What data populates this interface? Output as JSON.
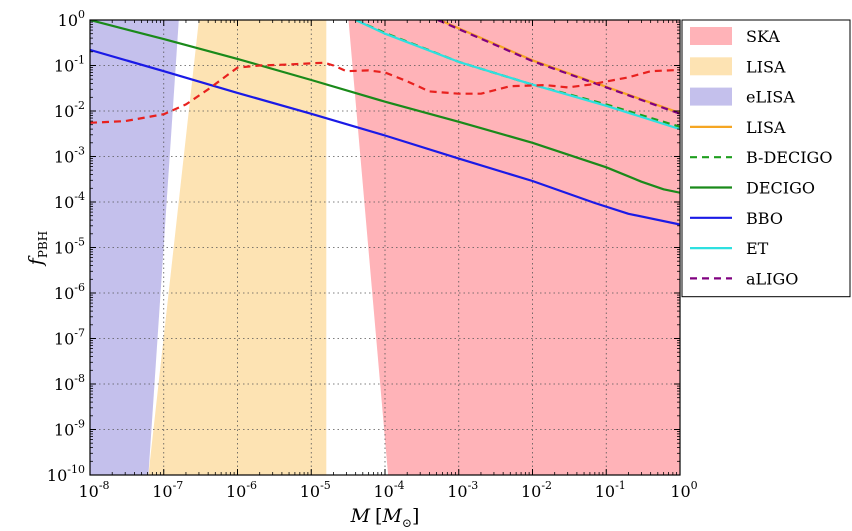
{
  "chart_data": {
    "type": "line",
    "title": "",
    "xlabel": {
      "main": "M",
      "open": "[",
      "var": "M",
      "sub": "⊙",
      "close": "]"
    },
    "ylabel": {
      "main": "f",
      "sub": "PBH"
    },
    "x_scale": "log",
    "y_scale": "log",
    "xlim": [
      1e-08,
      1
    ],
    "ylim": [
      1e-10,
      1
    ],
    "x_ticks": [
      {
        "base": "10",
        "exp": "-8",
        "value": 1e-08
      },
      {
        "base": "10",
        "exp": "-7",
        "value": 1e-07
      },
      {
        "base": "10",
        "exp": "-6",
        "value": 1e-06
      },
      {
        "base": "10",
        "exp": "-5",
        "value": 1e-05
      },
      {
        "base": "10",
        "exp": "-4",
        "value": 0.0001
      },
      {
        "base": "10",
        "exp": "-3",
        "value": 0.001
      },
      {
        "base": "10",
        "exp": "-2",
        "value": 0.01
      },
      {
        "base": "10",
        "exp": "-1",
        "value": 0.1
      },
      {
        "base": "10",
        "exp": "0",
        "value": 1
      }
    ],
    "y_ticks": [
      {
        "base": "10",
        "exp": "0",
        "value": 1
      },
      {
        "base": "10",
        "exp": "-1",
        "value": 0.1
      },
      {
        "base": "10",
        "exp": "-2",
        "value": 0.01
      },
      {
        "base": "10",
        "exp": "-3",
        "value": 0.001
      },
      {
        "base": "10",
        "exp": "-4",
        "value": 0.0001
      },
      {
        "base": "10",
        "exp": "-5",
        "value": 1e-05
      },
      {
        "base": "10",
        "exp": "-6",
        "value": 1e-06
      },
      {
        "base": "10",
        "exp": "-7",
        "value": 1e-07
      },
      {
        "base": "10",
        "exp": "-8",
        "value": 1e-08
      },
      {
        "base": "10",
        "exp": "-9",
        "value": 1e-09
      },
      {
        "base": "10",
        "exp": "-10",
        "value": 1e-10
      }
    ],
    "grid": true,
    "legend_position": "right",
    "regions": [
      {
        "name": "SKA",
        "color": "#ffb3b8",
        "polygon": [
          [
            3.2e-05,
            1
          ],
          [
            1,
            1
          ],
          [
            1,
            1e-10
          ],
          [
            0.00011,
            1e-10
          ]
        ]
      },
      {
        "name": "LISA",
        "color": "#fde3b3",
        "polygon": [
          [
            3e-07,
            1
          ],
          [
            1.6e-05,
            1
          ],
          [
            1.6e-05,
            1e-10
          ],
          [
            6.2e-08,
            1e-10
          ]
        ]
      },
      {
        "name": "eLISA",
        "color": "#c4c0ec",
        "polygon": [
          [
            1e-08,
            1
          ],
          [
            1.6e-07,
            1
          ],
          [
            6.2e-08,
            1e-10
          ],
          [
            1e-08,
            1e-10
          ]
        ]
      }
    ],
    "series": [
      {
        "name": "LISA",
        "color": "#f5a623",
        "dash": "solid",
        "points": [
          [
            0.00055,
            1
          ],
          [
            0.01,
            0.13
          ],
          [
            0.1,
            0.034
          ],
          [
            1,
            0.009
          ]
        ]
      },
      {
        "name": "B-DECIGO",
        "color": "#1e9e1e",
        "dash": "dashed",
        "points": [
          [
            4e-05,
            1
          ],
          [
            0.0001,
            0.52
          ],
          [
            0.001,
            0.12
          ],
          [
            0.01,
            0.038
          ],
          [
            0.1,
            0.014
          ],
          [
            1,
            0.0045
          ]
        ]
      },
      {
        "name": "DECIGO",
        "color": "#1a8a1a",
        "dash": "solid",
        "points": [
          [
            1e-08,
            1
          ],
          [
            1e-07,
            0.38
          ],
          [
            1e-06,
            0.14
          ],
          [
            1e-05,
            0.048
          ],
          [
            0.0001,
            0.016
          ],
          [
            0.001,
            0.0058
          ],
          [
            0.01,
            0.002
          ],
          [
            0.1,
            0.00058
          ],
          [
            0.3,
            0.00028
          ],
          [
            0.6,
            0.00019
          ],
          [
            1,
            0.00016
          ]
        ]
      },
      {
        "name": "BBO",
        "color": "#1a1ae6",
        "dash": "solid",
        "points": [
          [
            1e-08,
            0.22
          ],
          [
            1e-07,
            0.075
          ],
          [
            1e-06,
            0.025
          ],
          [
            1e-05,
            0.0087
          ],
          [
            0.0001,
            0.0029
          ],
          [
            0.001,
            0.0009
          ],
          [
            0.01,
            0.00029
          ],
          [
            0.07,
            9.5e-05
          ],
          [
            0.2,
            5.5e-05
          ],
          [
            1,
            3.2e-05
          ]
        ]
      },
      {
        "name": "ET",
        "color": "#2ee0e0",
        "dash": "solid",
        "points": [
          [
            4e-05,
            1
          ],
          [
            0.0001,
            0.5
          ],
          [
            0.001,
            0.12
          ],
          [
            0.01,
            0.038
          ],
          [
            0.1,
            0.013
          ],
          [
            1,
            0.004
          ]
        ]
      },
      {
        "name": "aLIGO",
        "color": "#800080",
        "dash": "dashed",
        "points": [
          [
            0.00052,
            1
          ],
          [
            0.01,
            0.125
          ],
          [
            0.1,
            0.033
          ],
          [
            1,
            0.0087
          ]
        ]
      },
      {
        "name": "",
        "color": "#e8211e",
        "dash": "dashed",
        "in_legend": false,
        "points": [
          [
            1e-08,
            0.0055
          ],
          [
            3e-08,
            0.006
          ],
          [
            1e-07,
            0.0085
          ],
          [
            2e-07,
            0.014
          ],
          [
            4e-07,
            0.03
          ],
          [
            1e-06,
            0.09
          ],
          [
            2e-06,
            0.1
          ],
          [
            5e-06,
            0.105
          ],
          [
            1.5e-05,
            0.115
          ],
          [
            2e-05,
            0.1
          ],
          [
            3e-05,
            0.075
          ],
          [
            6e-05,
            0.078
          ],
          [
            0.0001,
            0.07
          ],
          [
            0.0002,
            0.045
          ],
          [
            0.0004,
            0.027
          ],
          [
            0.001,
            0.024
          ],
          [
            0.002,
            0.024
          ],
          [
            0.005,
            0.035
          ],
          [
            0.015,
            0.037
          ],
          [
            0.03,
            0.033
          ],
          [
            0.06,
            0.038
          ],
          [
            0.2,
            0.055
          ],
          [
            0.4,
            0.075
          ],
          [
            1,
            0.08
          ]
        ]
      }
    ],
    "legend": [
      {
        "label": "SKA",
        "kind": "patch",
        "color": "#ffb3b8"
      },
      {
        "label": "LISA",
        "kind": "patch",
        "color": "#fde3b3"
      },
      {
        "label": "eLISA",
        "kind": "patch",
        "color": "#c4c0ec"
      },
      {
        "label": "LISA",
        "kind": "line",
        "color": "#f5a623",
        "dash": "solid"
      },
      {
        "label": "B-DECIGO",
        "kind": "line",
        "color": "#1e9e1e",
        "dash": "dashed"
      },
      {
        "label": "DECIGO",
        "kind": "line",
        "color": "#1a8a1a",
        "dash": "solid"
      },
      {
        "label": "BBO",
        "kind": "line",
        "color": "#1a1ae6",
        "dash": "solid"
      },
      {
        "label": "ET",
        "kind": "line",
        "color": "#2ee0e0",
        "dash": "solid"
      },
      {
        "label": "aLIGO",
        "kind": "line",
        "color": "#800080",
        "dash": "dashed"
      }
    ]
  }
}
